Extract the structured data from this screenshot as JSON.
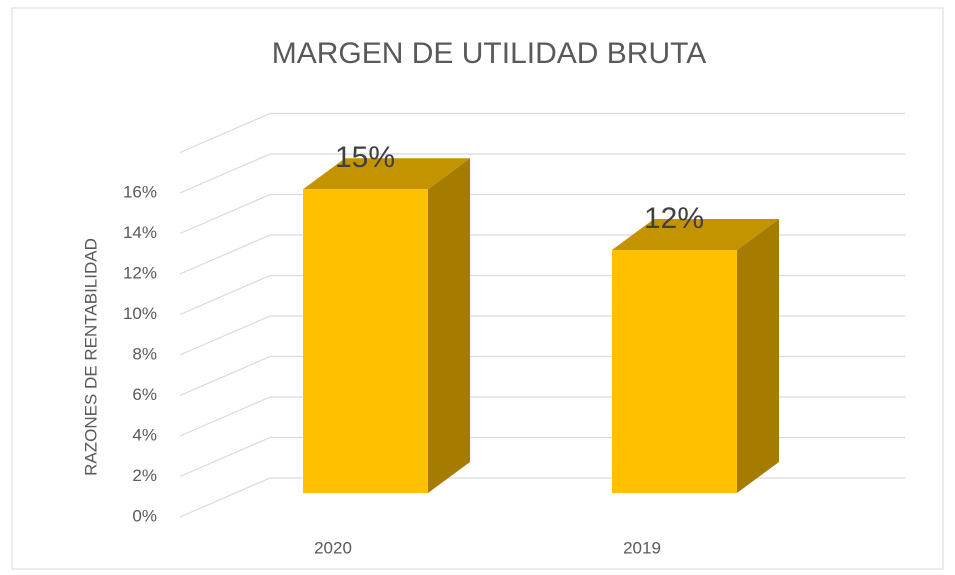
{
  "chart_data": {
    "type": "bar3d",
    "title": "MARGEN DE UTILIDAD BRUTA",
    "y_axis_label": "RAZONES  DE  RENTABILIDAD",
    "categories": [
      "2020",
      "2019"
    ],
    "values": [
      15,
      12
    ],
    "value_labels": [
      "15%",
      "12%"
    ],
    "color": "#ffc000",
    "ylim": [
      0,
      18
    ],
    "yticks": [
      {
        "value": 0,
        "label": "0%"
      },
      {
        "value": 2,
        "label": "2%"
      },
      {
        "value": 4,
        "label": "4%"
      },
      {
        "value": 6,
        "label": "6%"
      },
      {
        "value": 8,
        "label": "8%"
      },
      {
        "value": 10,
        "label": "10%"
      },
      {
        "value": 12,
        "label": "12%"
      },
      {
        "value": 14,
        "label": "14%"
      },
      {
        "value": 16,
        "label": "16%"
      }
    ],
    "grid": true
  }
}
